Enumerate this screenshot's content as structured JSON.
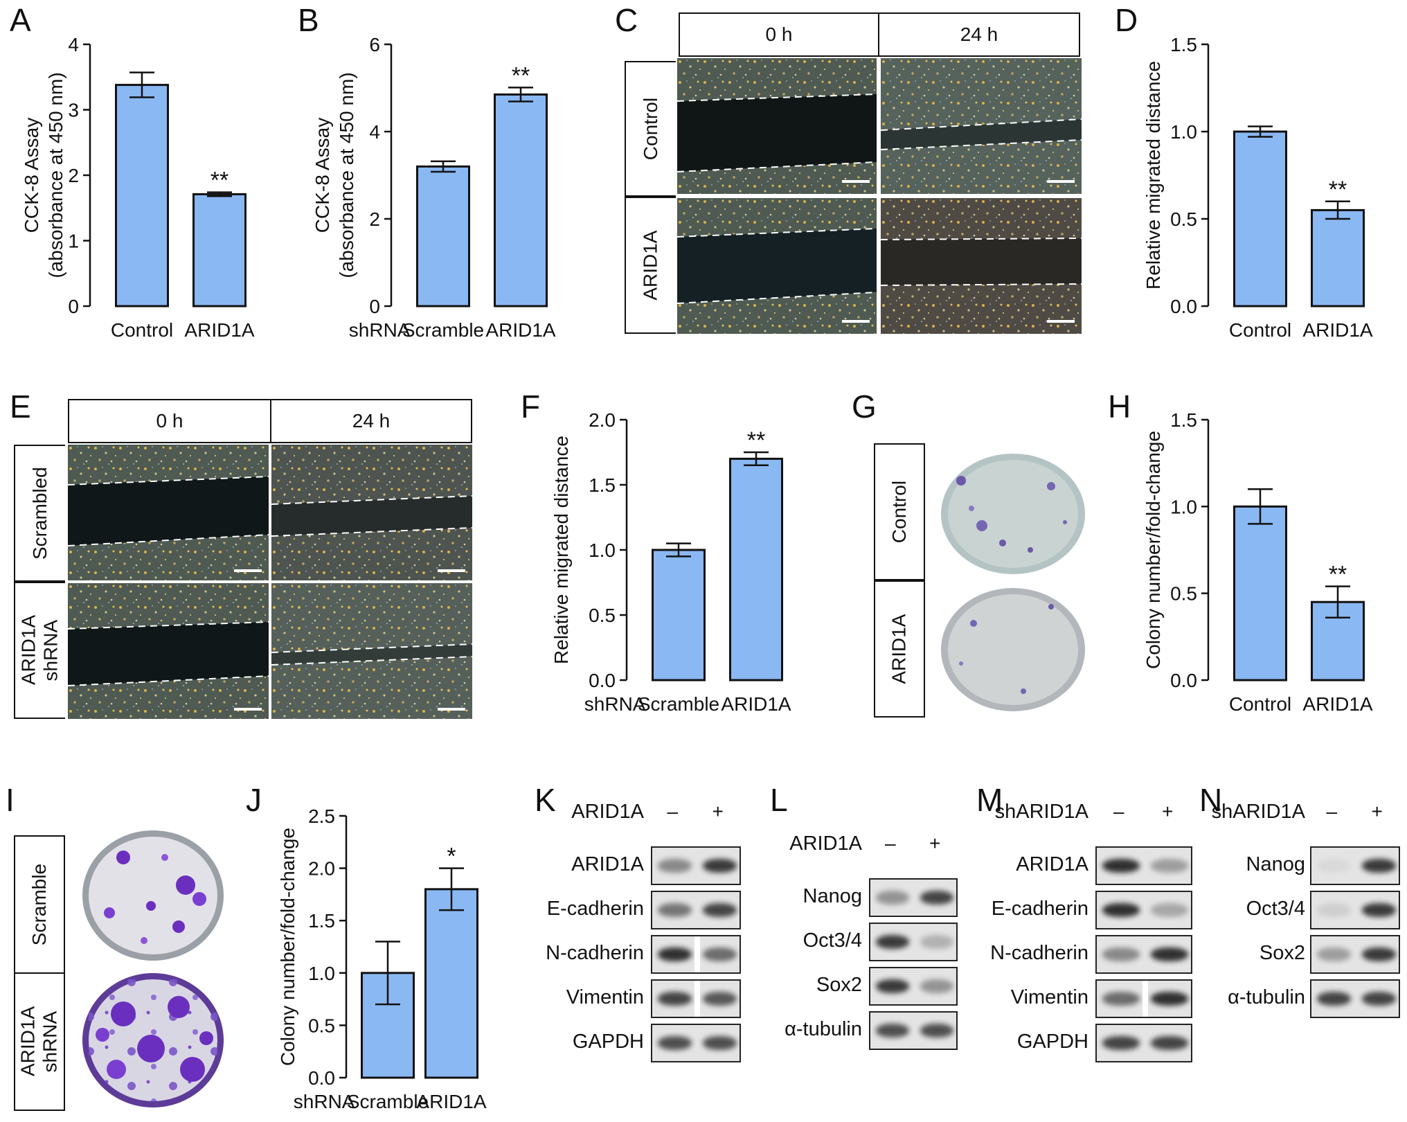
{
  "panels": {
    "A": {
      "letter": "A"
    },
    "B": {
      "letter": "B"
    },
    "C": {
      "letter": "C"
    },
    "D": {
      "letter": "D"
    },
    "E": {
      "letter": "E"
    },
    "F": {
      "letter": "F"
    },
    "G": {
      "letter": "G"
    },
    "H": {
      "letter": "H"
    },
    "I": {
      "letter": "I"
    },
    "J": {
      "letter": "J"
    },
    "K": {
      "letter": "K"
    },
    "L": {
      "letter": "L"
    },
    "M": {
      "letter": "M"
    },
    "N": {
      "letter": "N"
    }
  },
  "colors": {
    "bar_fill": "#8ab8f3",
    "axis": "#111111",
    "blot_bg": "#e4e4e4",
    "crystal_violet": "#6a2fbf"
  },
  "chart_data": [
    {
      "panel": "A",
      "type": "bar",
      "categories": [
        "Control",
        "ARID1A"
      ],
      "values": [
        3.38,
        1.71
      ],
      "errors": [
        0.19,
        0.03
      ],
      "significance": [
        "",
        "**"
      ],
      "ylabel": [
        "CCK-8 Assay",
        "(absorbance at 450 nm)"
      ],
      "ylim": [
        0,
        4
      ],
      "yticks": [
        "0",
        "1",
        "2",
        "3",
        "4"
      ],
      "row_label": ""
    },
    {
      "panel": "B",
      "type": "bar",
      "categories": [
        "Scramble",
        "ARID1A"
      ],
      "values": [
        3.2,
        4.85
      ],
      "errors": [
        0.12,
        0.16
      ],
      "significance": [
        "",
        "**"
      ],
      "ylabel": [
        "CCK-8 Assay",
        "(absorbance at 450 nm)"
      ],
      "ylim": [
        0,
        6
      ],
      "yticks": [
        "0",
        "2",
        "4",
        "6"
      ],
      "row_label": "shRNA"
    },
    {
      "panel": "D",
      "type": "bar",
      "categories": [
        "Control",
        "ARID1A"
      ],
      "values": [
        1.0,
        0.55
      ],
      "errors": [
        0.03,
        0.05
      ],
      "significance": [
        "",
        "**"
      ],
      "ylabel": [
        "Relative migrated distance"
      ],
      "ylim": [
        0,
        1.5
      ],
      "yticks": [
        "0.0",
        "0.5",
        "1.0",
        "1.5"
      ],
      "row_label": ""
    },
    {
      "panel": "F",
      "type": "bar",
      "categories": [
        "Scramble",
        "ARID1A"
      ],
      "values": [
        1.0,
        1.7
      ],
      "errors": [
        0.05,
        0.05
      ],
      "significance": [
        "",
        "**"
      ],
      "ylabel": [
        "Relative migrated distance"
      ],
      "ylim": [
        0,
        2.0
      ],
      "yticks": [
        "0.0",
        "0.5",
        "1.0",
        "1.5",
        "2.0"
      ],
      "row_label": "shRNA"
    },
    {
      "panel": "H",
      "type": "bar",
      "categories": [
        "Control",
        "ARID1A"
      ],
      "values": [
        1.0,
        0.45
      ],
      "errors": [
        0.1,
        0.09
      ],
      "significance": [
        "",
        "**"
      ],
      "ylabel": [
        "Colony number/fold-change"
      ],
      "ylim": [
        0,
        1.5
      ],
      "yticks": [
        "0.0",
        "0.5",
        "1.0",
        "1.5"
      ],
      "row_label": ""
    },
    {
      "panel": "J",
      "type": "bar",
      "categories": [
        "Scramble",
        "ARID1A"
      ],
      "values": [
        1.0,
        1.8
      ],
      "errors": [
        0.3,
        0.2
      ],
      "significance": [
        "",
        "*"
      ],
      "ylabel": [
        "Colony number/fold-change"
      ],
      "ylim": [
        0,
        2.5
      ],
      "yticks": [
        "0.0",
        "0.5",
        "1.0",
        "1.5",
        "2.0",
        "2.5"
      ],
      "row_label": "shRNA"
    }
  ],
  "wound": {
    "C": {
      "col_headers": [
        "0 h",
        "24 h"
      ],
      "row_labels": [
        "Control",
        "ARID1A"
      ]
    },
    "E": {
      "col_headers": [
        "0 h",
        "24 h"
      ],
      "row_labels": [
        "Scrambled",
        "ARID1A shRNA"
      ]
    }
  },
  "colony": {
    "G": {
      "row_labels": [
        "Control",
        "ARID1A"
      ]
    },
    "I": {
      "row_labels": [
        "Scramble",
        "ARID1A shRNA"
      ]
    }
  },
  "blots": {
    "K": {
      "condition_label": "ARID1A",
      "lanes": [
        "–",
        "+"
      ],
      "proteins": [
        "ARID1A",
        "E-cadherin",
        "N-cadherin",
        "Vimentin",
        "GAPDH"
      ],
      "intensities": [
        [
          0.45,
          0.85
        ],
        [
          0.55,
          0.8
        ],
        [
          0.9,
          0.6
        ],
        [
          0.8,
          0.7
        ],
        [
          0.75,
          0.75
        ]
      ]
    },
    "L": {
      "condition_label": "ARID1A",
      "lanes": [
        "–",
        "+"
      ],
      "proteins": [
        "Nanog",
        "Oct3/4",
        "Sox2",
        "α-tubulin"
      ],
      "intensities": [
        [
          0.4,
          0.8
        ],
        [
          0.85,
          0.25
        ],
        [
          0.85,
          0.4
        ],
        [
          0.75,
          0.75
        ]
      ]
    },
    "M": {
      "condition_label": "shARID1A",
      "lanes": [
        "–",
        "+"
      ],
      "proteins": [
        "ARID1A",
        "E-cadherin",
        "N-cadherin",
        "Vimentin",
        "GAPDH"
      ],
      "intensities": [
        [
          0.9,
          0.35
        ],
        [
          0.9,
          0.3
        ],
        [
          0.45,
          0.9
        ],
        [
          0.6,
          0.9
        ],
        [
          0.8,
          0.8
        ]
      ]
    },
    "N": {
      "condition_label": "shARID1A",
      "lanes": [
        "–",
        "+"
      ],
      "proteins": [
        "Nanog",
        "Oct3/4",
        "Sox2",
        "α-tubulin"
      ],
      "intensities": [
        [
          0.05,
          0.85
        ],
        [
          0.1,
          0.85
        ],
        [
          0.35,
          0.85
        ],
        [
          0.8,
          0.8
        ]
      ]
    }
  }
}
